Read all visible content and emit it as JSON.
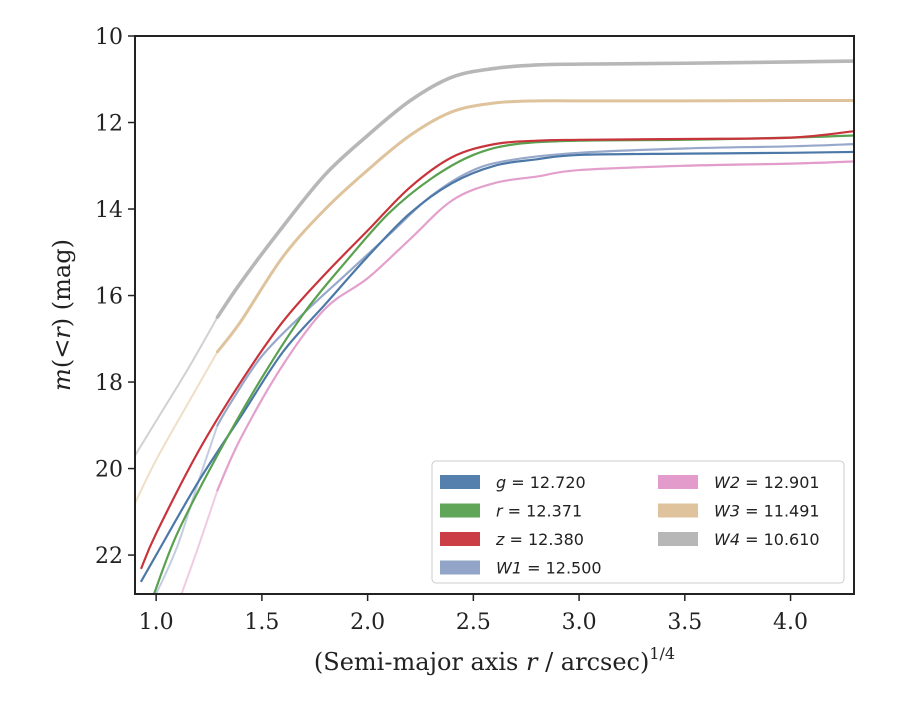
{
  "chart_data": {
    "type": "line",
    "xlabel": "(Semi-major axis r / arcsec)",
    "xlabel_parts": {
      "pre": "(Semi-major axis ",
      "var": "r",
      "post": " / arcsec)",
      "sup": "1/4"
    },
    "ylabel": "m(< r) (mag)",
    "ylabel_parts": {
      "var1": "m",
      "mid": "(<",
      "var2": "r",
      "post": ") (mag)"
    },
    "xlim": [
      0.9,
      4.3
    ],
    "ylim": [
      22.9,
      10.0
    ],
    "y_inverted": true,
    "grid": false,
    "legend_position": "lower right",
    "x_ticks": [
      {
        "value": 1.0,
        "label": "1.0"
      },
      {
        "value": 1.5,
        "label": "1.5"
      },
      {
        "value": 2.0,
        "label": "2.0"
      },
      {
        "value": 2.5,
        "label": "2.5"
      },
      {
        "value": 3.0,
        "label": "3.0"
      },
      {
        "value": 3.5,
        "label": "3.5"
      },
      {
        "value": 4.0,
        "label": "4.0"
      }
    ],
    "y_ticks": [
      {
        "value": 10,
        "label": "10"
      },
      {
        "value": 12,
        "label": "12"
      },
      {
        "value": 14,
        "label": "14"
      },
      {
        "value": 16,
        "label": "16"
      },
      {
        "value": 18,
        "label": "18"
      },
      {
        "value": 20,
        "label": "20"
      },
      {
        "value": 22,
        "label": "22"
      }
    ],
    "series": [
      {
        "key": "g",
        "var": "g",
        "label": "= 12.720",
        "color": "#4c78a8",
        "opacity": 1.0,
        "width": 2.2,
        "x": [
          0.93,
          1.0,
          1.2,
          1.4,
          1.6,
          1.8,
          2.0,
          2.2,
          2.4,
          2.6,
          2.8,
          3.0,
          3.5,
          4.0,
          4.3
        ],
        "y": [
          22.6,
          22.0,
          20.3,
          18.8,
          17.3,
          16.2,
          15.1,
          14.1,
          13.4,
          13.0,
          12.85,
          12.75,
          12.72,
          12.7,
          12.68
        ]
      },
      {
        "key": "r",
        "var": "r",
        "label": "= 12.371",
        "color": "#59a14f",
        "opacity": 1.0,
        "width": 2.2,
        "x": [
          0.99,
          1.1,
          1.3,
          1.5,
          1.7,
          1.9,
          2.1,
          2.3,
          2.5,
          2.7,
          3.0,
          3.5,
          4.0,
          4.3
        ],
        "y": [
          22.9,
          21.5,
          19.6,
          17.9,
          16.4,
          15.2,
          14.1,
          13.3,
          12.75,
          12.5,
          12.42,
          12.4,
          12.35,
          12.3
        ]
      },
      {
        "key": "z",
        "var": "z",
        "label": "= 12.380",
        "color": "#c8343b",
        "opacity": 1.0,
        "width": 2.2,
        "x": [
          0.93,
          1.0,
          1.2,
          1.4,
          1.6,
          1.8,
          2.0,
          2.2,
          2.4,
          2.6,
          2.8,
          3.0,
          3.5,
          4.0,
          4.3
        ],
        "y": [
          22.3,
          21.5,
          19.6,
          18.0,
          16.6,
          15.5,
          14.5,
          13.5,
          12.8,
          12.5,
          12.42,
          12.4,
          12.38,
          12.35,
          12.2
        ]
      },
      {
        "key": "W1",
        "var": "W1",
        "label": "= 12.500",
        "color": "#8c9fc4",
        "opacity": 0.9,
        "width": 2.2,
        "x": [
          1.29,
          1.35,
          1.5,
          1.7,
          1.9,
          2.1,
          2.3,
          2.5,
          2.7,
          3.0,
          3.5,
          4.0,
          4.3
        ],
        "y": [
          19.0,
          18.5,
          17.4,
          16.4,
          15.5,
          14.6,
          13.7,
          13.1,
          12.85,
          12.7,
          12.6,
          12.55,
          12.5
        ]
      },
      {
        "key": "W2",
        "var": "W2",
        "label": "= 12.901",
        "color": "#e096c8",
        "opacity": 0.9,
        "width": 2.2,
        "x": [
          1.29,
          1.4,
          1.6,
          1.8,
          2.0,
          2.2,
          2.4,
          2.6,
          2.8,
          3.0,
          3.5,
          4.0,
          4.3
        ],
        "y": [
          20.5,
          19.3,
          17.6,
          16.3,
          15.6,
          14.7,
          13.8,
          13.4,
          13.25,
          13.1,
          13.0,
          12.95,
          12.9
        ]
      },
      {
        "key": "W3",
        "var": "W3",
        "label": "= 11.491",
        "color": "#dcc097",
        "opacity": 0.95,
        "width": 3.0,
        "x": [
          1.29,
          1.4,
          1.6,
          1.8,
          2.0,
          2.2,
          2.4,
          2.6,
          2.8,
          3.0,
          3.5,
          4.0,
          4.3
        ],
        "y": [
          17.3,
          16.6,
          15.1,
          14.0,
          13.1,
          12.3,
          11.75,
          11.55,
          11.5,
          11.5,
          11.5,
          11.49,
          11.49
        ]
      },
      {
        "key": "W4",
        "var": "W4",
        "label": "= 10.610",
        "color": "#b3b3b3",
        "opacity": 0.95,
        "width": 3.6,
        "x": [
          1.29,
          1.4,
          1.6,
          1.8,
          2.0,
          2.2,
          2.4,
          2.6,
          2.8,
          3.0,
          3.5,
          4.0,
          4.3
        ],
        "y": [
          16.5,
          15.7,
          14.4,
          13.2,
          12.3,
          11.5,
          10.95,
          10.75,
          10.67,
          10.65,
          10.63,
          10.6,
          10.58
        ]
      }
    ],
    "faint_extensions": [
      {
        "key": "W4-inner",
        "color": "#bdbdbd",
        "opacity": 0.7,
        "width": 2.0,
        "x": [
          0.9,
          1.0,
          1.15,
          1.29
        ],
        "y": [
          19.7,
          18.9,
          17.7,
          16.5
        ]
      },
      {
        "key": "W3-inner",
        "color": "#ead7b8",
        "opacity": 0.8,
        "width": 2.0,
        "x": [
          0.9,
          1.0,
          1.15,
          1.29
        ],
        "y": [
          20.8,
          19.8,
          18.5,
          17.3
        ]
      },
      {
        "key": "W1-inner",
        "color": "#aab6d3",
        "opacity": 0.7,
        "width": 2.0,
        "x": [
          1.0,
          1.1,
          1.2,
          1.29
        ],
        "y": [
          22.9,
          21.8,
          20.3,
          19.0
        ]
      },
      {
        "key": "W2-inner",
        "color": "#eab3d6",
        "opacity": 0.7,
        "width": 2.0,
        "x": [
          1.12,
          1.2,
          1.29
        ],
        "y": [
          22.9,
          21.8,
          20.5
        ]
      },
      {
        "key": "W2-outer",
        "color": "#eab3d6",
        "opacity": 0.7,
        "width": 2.0,
        "x": [
          3.5,
          4.0,
          4.3
        ],
        "y": [
          13.0,
          12.95,
          12.9
        ]
      }
    ]
  }
}
